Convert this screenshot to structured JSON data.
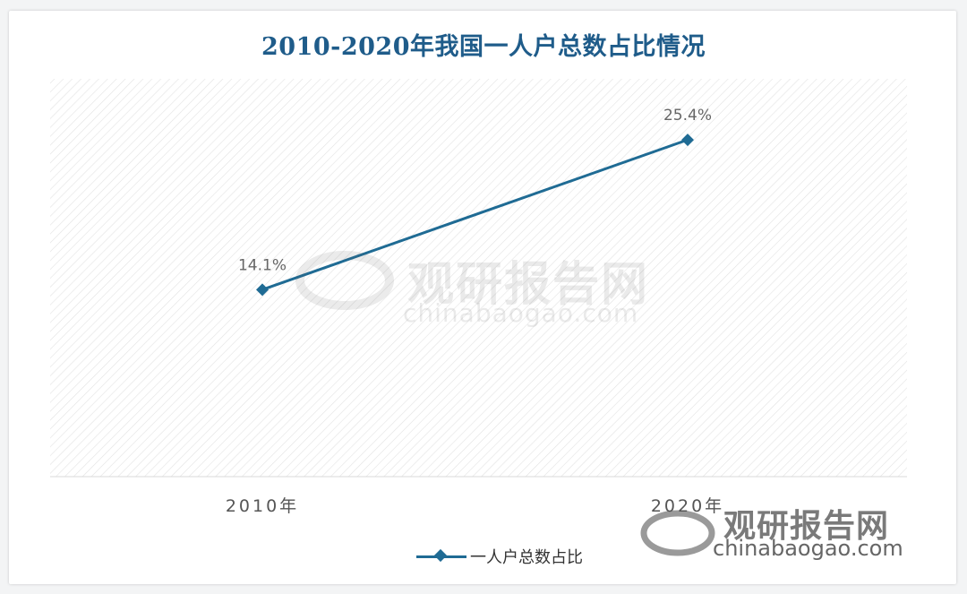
{
  "chart_data": {
    "type": "line",
    "title": "2010-2020年我国一人户总数占比情况",
    "categories": [
      "2010年",
      "2020年"
    ],
    "series": [
      {
        "name": "一人户总数占比",
        "values": [
          14.1,
          25.4
        ],
        "labels": [
          "14.1%",
          "25.4%"
        ]
      }
    ],
    "ylim": [
      0,
      30
    ],
    "grid": false,
    "legend_position": "bottom",
    "colors": {
      "series": "#1f6b94",
      "title": "#1f5c8a"
    }
  },
  "watermark": {
    "center_name": "观研报告网",
    "center_url": "chinabaogao.com",
    "corner_name": "观研报告网",
    "corner_url": "chinabaogao.com"
  }
}
